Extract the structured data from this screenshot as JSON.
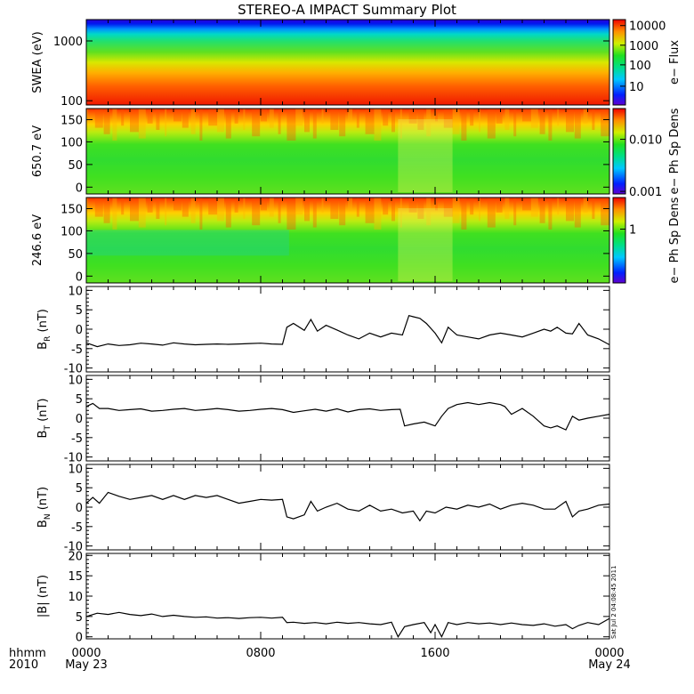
{
  "title": "STEREO-A IMPACT Summary Plot",
  "footer": {
    "row1_label": "hhmm",
    "row2_label": "2010",
    "time_ticks": [
      "0000",
      "0800",
      "1600",
      "0000"
    ],
    "date_ticks": [
      "May 23",
      "",
      "",
      "May 24"
    ],
    "timestamp": "Sat Jul  2 04:08:45 2011"
  },
  "chart_data": [
    {
      "type": "heatmap",
      "panel": "swea",
      "ylabel": "SWEA (eV)",
      "yscale": "log",
      "ylim": [
        90,
        2000
      ],
      "yticks": [
        "1000",
        "100"
      ],
      "colorbar": {
        "label": "e− Flux",
        "scale": "log",
        "ticks": [
          "10000",
          "1000",
          "100",
          "10"
        ]
      }
    },
    {
      "type": "heatmap",
      "panel": "pad650",
      "ylabel": "650.7 eV",
      "ylim": [
        -5,
        180
      ],
      "yticks": [
        "150",
        "100",
        "50",
        "0"
      ],
      "colorbar": {
        "label": "e− Ph Sp Dens",
        "scale": "log",
        "ticks": [
          "0.010",
          "0.001"
        ]
      }
    },
    {
      "type": "heatmap",
      "panel": "pad246",
      "ylabel": "246.6 eV",
      "ylim": [
        -5,
        180
      ],
      "yticks": [
        "150",
        "100",
        "50",
        "0"
      ],
      "colorbar": {
        "label": "e− Ph Sp Dens",
        "scale": "log",
        "ticks": [
          "1"
        ]
      }
    },
    {
      "type": "line",
      "panel": "br",
      "ylabel_base": "B",
      "ylabel_sub": "R",
      "ylabel_unit": "(nT)",
      "ylim": [
        -11,
        11
      ],
      "yticks": [
        "10",
        "5",
        "0",
        "-5",
        "-10"
      ],
      "x_hours": [
        0,
        0.5,
        1,
        1.5,
        2,
        2.5,
        3,
        3.5,
        4,
        4.5,
        5,
        5.5,
        6,
        6.5,
        7,
        7.5,
        8,
        8.5,
        9,
        9.2,
        9.5,
        10,
        10.3,
        10.6,
        11,
        11.5,
        12,
        12.5,
        13,
        13.5,
        14,
        14.5,
        14.8,
        15,
        15.3,
        15.6,
        16,
        16.3,
        16.6,
        17,
        17.5,
        18,
        18.5,
        19,
        19.5,
        20,
        20.5,
        21,
        21.3,
        21.6,
        22,
        22.3,
        22.6,
        23,
        23.5,
        24
      ],
      "y_values": [
        -3.5,
        -4.5,
        -3.8,
        -4.2,
        -4.0,
        -3.6,
        -3.8,
        -4.1,
        -3.5,
        -3.8,
        -4.0,
        -3.9,
        -3.8,
        -3.9,
        -3.8,
        -3.7,
        -3.6,
        -3.8,
        -3.9,
        0.5,
        1.5,
        -0.3,
        2.5,
        -0.5,
        1.0,
        -0.2,
        -1.5,
        -2.5,
        -1.0,
        -2.0,
        -1.0,
        -1.5,
        3.5,
        3.2,
        2.8,
        1.5,
        -1.0,
        -3.5,
        0.5,
        -1.5,
        -2.0,
        -2.5,
        -1.5,
        -1.0,
        -1.5,
        -2.0,
        -1.0,
        0.0,
        -0.5,
        0.5,
        -1.0,
        -1.2,
        1.5,
        -1.5,
        -2.5,
        -4.0
      ]
    },
    {
      "type": "line",
      "panel": "bt",
      "ylabel_base": "B",
      "ylabel_sub": "T",
      "ylabel_unit": "(nT)",
      "ylim": [
        -11,
        11
      ],
      "yticks": [
        "10",
        "5",
        "0",
        "-5",
        "-10"
      ],
      "x_hours": [
        0,
        0.3,
        0.6,
        1,
        1.5,
        2,
        2.5,
        3,
        3.5,
        4,
        4.5,
        5,
        5.5,
        6,
        6.5,
        7,
        7.5,
        8,
        8.5,
        9,
        9.5,
        10,
        10.5,
        11,
        11.5,
        12,
        12.5,
        13,
        13.5,
        14,
        14.4,
        14.6,
        15,
        15.5,
        16,
        16.3,
        16.6,
        17,
        17.5,
        18,
        18.5,
        19,
        19.2,
        19.5,
        20,
        20.5,
        21,
        21.3,
        21.6,
        22,
        22.3,
        22.6,
        23,
        23.5,
        24
      ],
      "y_values": [
        3.0,
        3.8,
        2.5,
        2.5,
        2.0,
        2.2,
        2.4,
        1.8,
        2.0,
        2.3,
        2.5,
        2.0,
        2.2,
        2.5,
        2.2,
        1.8,
        2.0,
        2.3,
        2.5,
        2.2,
        1.5,
        1.9,
        2.3,
        1.8,
        2.4,
        1.6,
        2.2,
        2.4,
        2.0,
        2.2,
        2.3,
        -2.0,
        -1.5,
        -1.0,
        -2.0,
        0.5,
        2.5,
        3.5,
        4.0,
        3.5,
        4.0,
        3.5,
        3.0,
        1.0,
        2.5,
        0.5,
        -2.0,
        -2.5,
        -2.0,
        -3.0,
        0.5,
        -0.5,
        0.0,
        0.5,
        1.0
      ]
    },
    {
      "type": "line",
      "panel": "bn",
      "ylabel_base": "B",
      "ylabel_sub": "N",
      "ylabel_unit": "(nT)",
      "ylim": [
        -11,
        11
      ],
      "yticks": [
        "10",
        "5",
        "0",
        "-5",
        "-10"
      ],
      "x_hours": [
        0,
        0.3,
        0.6,
        1,
        1.5,
        2,
        2.5,
        3,
        3.5,
        4,
        4.5,
        5,
        5.5,
        6,
        6.5,
        7,
        7.5,
        8,
        8.5,
        9,
        9.2,
        9.5,
        10,
        10.3,
        10.6,
        11,
        11.5,
        12,
        12.5,
        13,
        13.5,
        14,
        14.5,
        15,
        15.3,
        15.6,
        16,
        16.5,
        17,
        17.5,
        18,
        18.5,
        19,
        19.5,
        20,
        20.5,
        21,
        21.5,
        22,
        22.3,
        22.6,
        23,
        23.5,
        24
      ],
      "y_values": [
        1.0,
        2.5,
        1.0,
        3.8,
        2.8,
        2.0,
        2.5,
        3.0,
        2.0,
        3.0,
        2.0,
        3.0,
        2.5,
        3.0,
        2.0,
        1.0,
        1.5,
        2.0,
        1.8,
        2.0,
        -2.5,
        -3.0,
        -2.0,
        1.5,
        -1.0,
        0.0,
        1.0,
        -0.5,
        -1.0,
        0.5,
        -1.0,
        -0.5,
        -1.5,
        -1.0,
        -3.5,
        -1.0,
        -1.5,
        0.0,
        -0.5,
        0.5,
        0.0,
        0.8,
        -0.5,
        0.5,
        1.0,
        0.5,
        -0.5,
        -0.5,
        1.5,
        -2.5,
        -1.0,
        -0.5,
        0.5,
        0.8
      ]
    },
    {
      "type": "line",
      "panel": "bmag",
      "ylabel_base": "|B|",
      "ylabel_sub": "",
      "ylabel_unit": "(nT)",
      "ylim": [
        -0.5,
        20.5
      ],
      "yticks": [
        "20",
        "15",
        "10",
        "5",
        "0"
      ],
      "x_hours": [
        0,
        0.5,
        1,
        1.5,
        2,
        2.5,
        3,
        3.5,
        4,
        4.5,
        5,
        5.5,
        6,
        6.5,
        7,
        7.5,
        8,
        8.5,
        9,
        9.2,
        9.5,
        10,
        10.5,
        11,
        11.5,
        12,
        12.5,
        13,
        13.5,
        14,
        14.3,
        14.6,
        15,
        15.5,
        15.8,
        16,
        16.3,
        16.6,
        17,
        17.5,
        18,
        18.5,
        19,
        19.5,
        20,
        20.5,
        21,
        21.5,
        22,
        22.3,
        22.6,
        23,
        23.5,
        24
      ],
      "y_values": [
        5.0,
        5.8,
        5.5,
        6.0,
        5.5,
        5.2,
        5.6,
        5.0,
        5.3,
        5.0,
        4.8,
        4.9,
        4.6,
        4.7,
        4.5,
        4.7,
        4.8,
        4.6,
        4.8,
        3.5,
        3.6,
        3.3,
        3.5,
        3.2,
        3.6,
        3.3,
        3.5,
        3.2,
        3.0,
        3.6,
        0.0,
        2.5,
        3.0,
        3.5,
        1.0,
        3.0,
        0.0,
        3.5,
        3.0,
        3.5,
        3.2,
        3.4,
        3.0,
        3.4,
        3.0,
        2.8,
        3.2,
        2.6,
        3.0,
        2.0,
        2.8,
        3.5,
        3.0,
        4.5
      ]
    }
  ]
}
